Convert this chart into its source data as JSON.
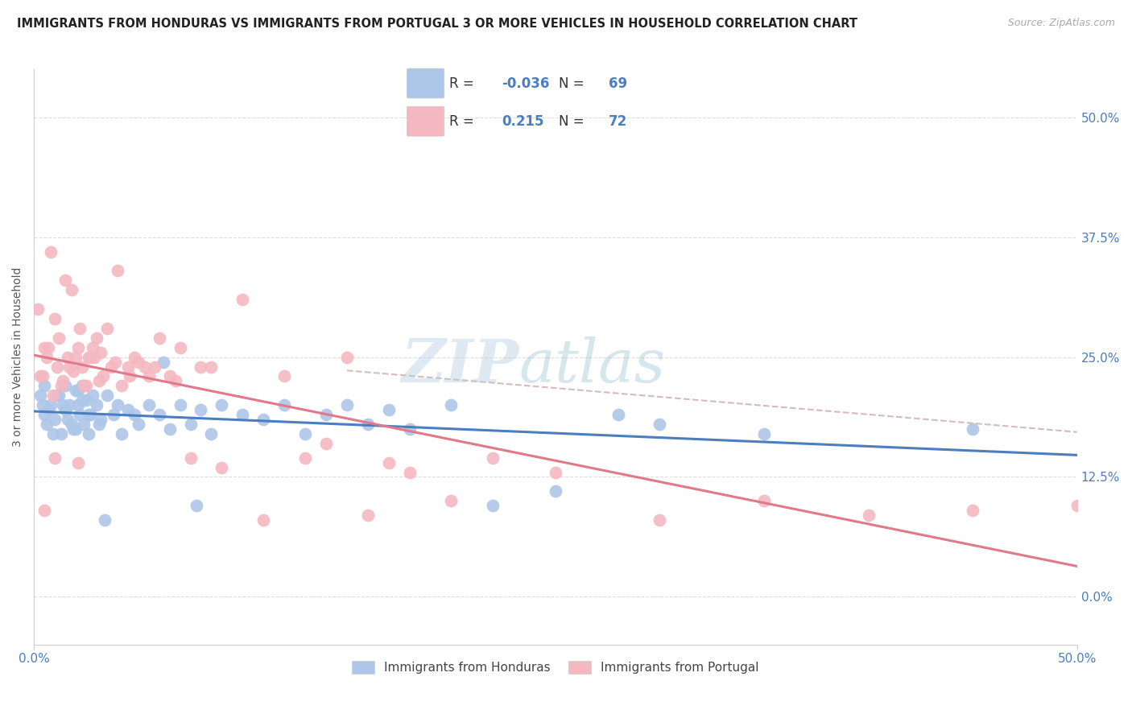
{
  "title": "IMMIGRANTS FROM HONDURAS VS IMMIGRANTS FROM PORTUGAL 3 OR MORE VEHICLES IN HOUSEHOLD CORRELATION CHART",
  "source": "Source: ZipAtlas.com",
  "ylabel": "3 or more Vehicles in Household",
  "ytick_values": [
    0.0,
    12.5,
    25.0,
    37.5,
    50.0
  ],
  "ytick_labels": [
    "0.0%",
    "12.5%",
    "25.0%",
    "37.5%",
    "50.0%"
  ],
  "xlim": [
    0.0,
    50.0
  ],
  "ylim": [
    -5.0,
    55.0
  ],
  "blue_color": "#4a7ebf",
  "pink_color": "#e07a8a",
  "light_blue": "#aec6e8",
  "light_pink": "#f4b8c1",
  "honduras_label": "Immigrants from Honduras",
  "portugal_label": "Immigrants from Portugal",
  "honduras_R": "-0.036",
  "honduras_N": "69",
  "portugal_R": "0.215",
  "portugal_N": "72",
  "honduras_x": [
    0.3,
    0.4,
    0.5,
    0.5,
    0.6,
    0.7,
    0.8,
    0.9,
    1.0,
    1.1,
    1.2,
    1.3,
    1.4,
    1.5,
    1.5,
    1.6,
    1.7,
    1.8,
    1.9,
    2.0,
    2.0,
    2.1,
    2.1,
    2.2,
    2.3,
    2.3,
    2.4,
    2.5,
    2.6,
    2.6,
    2.7,
    2.8,
    3.0,
    3.1,
    3.2,
    3.4,
    3.5,
    3.8,
    4.0,
    4.2,
    4.5,
    4.8,
    5.0,
    5.5,
    6.0,
    6.2,
    6.5,
    7.0,
    7.5,
    7.8,
    8.0,
    8.5,
    9.0,
    10.0,
    11.0,
    12.0,
    13.0,
    14.0,
    15.0,
    16.0,
    17.0,
    18.0,
    20.0,
    22.0,
    25.0,
    28.0,
    30.0,
    35.0,
    45.0
  ],
  "honduras_y": [
    21.0,
    20.0,
    19.0,
    22.0,
    18.0,
    19.5,
    20.0,
    17.0,
    18.5,
    21.0,
    21.0,
    17.0,
    20.0,
    22.0,
    19.5,
    18.5,
    20.0,
    18.0,
    17.5,
    21.5,
    17.5,
    20.0,
    21.5,
    19.0,
    22.0,
    20.5,
    18.0,
    20.5,
    17.0,
    19.0,
    19.0,
    21.0,
    20.0,
    18.0,
    18.5,
    8.0,
    21.0,
    19.0,
    20.0,
    17.0,
    19.5,
    19.0,
    18.0,
    20.0,
    19.0,
    24.5,
    17.5,
    20.0,
    18.0,
    9.5,
    19.5,
    17.0,
    20.0,
    19.0,
    18.5,
    20.0,
    17.0,
    19.0,
    20.0,
    18.0,
    19.5,
    17.5,
    20.0,
    9.5,
    11.0,
    19.0,
    18.0,
    17.0,
    17.5
  ],
  "portugal_x": [
    0.2,
    0.3,
    0.4,
    0.5,
    0.5,
    0.6,
    0.7,
    0.8,
    0.9,
    1.0,
    1.0,
    1.1,
    1.2,
    1.3,
    1.4,
    1.5,
    1.6,
    1.7,
    1.8,
    1.9,
    2.0,
    2.1,
    2.2,
    2.3,
    2.4,
    2.5,
    2.6,
    2.7,
    2.8,
    2.9,
    3.0,
    3.1,
    3.2,
    3.3,
    3.5,
    3.7,
    3.9,
    4.0,
    4.2,
    4.5,
    4.6,
    4.8,
    5.0,
    5.3,
    5.5,
    5.8,
    6.0,
    6.5,
    6.8,
    7.0,
    7.5,
    8.0,
    8.5,
    9.0,
    10.0,
    11.0,
    12.0,
    13.0,
    14.0,
    15.0,
    16.0,
    17.0,
    18.0,
    20.0,
    22.0,
    25.0,
    30.0,
    35.0,
    40.0,
    45.0,
    50.0,
    2.1
  ],
  "portugal_y": [
    30.0,
    23.0,
    23.0,
    9.0,
    26.0,
    25.0,
    26.0,
    36.0,
    21.0,
    14.5,
    29.0,
    24.0,
    27.0,
    22.0,
    22.5,
    33.0,
    25.0,
    24.0,
    32.0,
    23.5,
    25.0,
    26.0,
    28.0,
    24.0,
    22.0,
    22.0,
    25.0,
    25.0,
    26.0,
    25.0,
    27.0,
    22.5,
    25.5,
    23.0,
    28.0,
    24.0,
    24.5,
    34.0,
    22.0,
    24.0,
    23.0,
    25.0,
    24.5,
    24.0,
    23.0,
    24.0,
    27.0,
    23.0,
    22.5,
    26.0,
    14.5,
    24.0,
    24.0,
    13.5,
    31.0,
    8.0,
    23.0,
    14.5,
    16.0,
    25.0,
    8.5,
    14.0,
    13.0,
    10.0,
    14.5,
    13.0,
    8.0,
    10.0,
    8.5,
    9.0,
    9.5,
    14.0
  ]
}
